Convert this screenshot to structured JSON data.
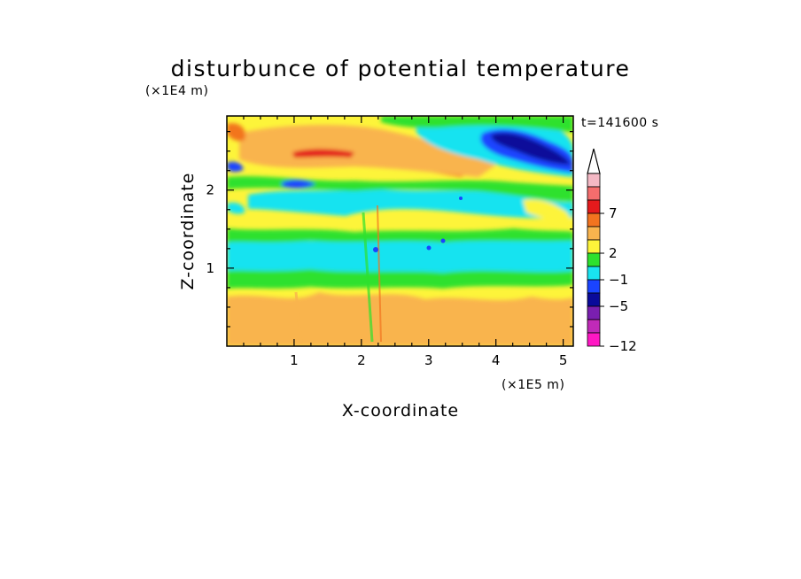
{
  "chart_data": {
    "type": "heatmap",
    "title": "disturbunce of potential temperature",
    "xlabel": "X-coordinate",
    "ylabel": "Z-coordinate",
    "x_unit": "(×1E5 m)",
    "y_unit": "(×1E4 m)",
    "time_label": "t=141600 s",
    "xlim": [
      0,
      5.15
    ],
    "ylim": [
      0,
      2.95
    ],
    "x_ticks": [
      "1",
      "2",
      "3",
      "4",
      "5"
    ],
    "y_ticks": [
      "1",
      "2"
    ],
    "colorbar": {
      "levels_shown": [
        "7",
        "2",
        "−1",
        "−5",
        "−12"
      ],
      "colors": [
        "#f4b8c4",
        "#f46d6d",
        "#e41a1c",
        "#f2741f",
        "#f9b44e",
        "#fdf43a",
        "#2de12d",
        "#19e3f0",
        "#1a44ff",
        "#0a0a9a",
        "#7a1fb0",
        "#c02ab8",
        "#ff17c4"
      ],
      "extend_top_arrow": true
    },
    "field_description_bands": [
      {
        "z_from": 0.0,
        "z_to": 0.35,
        "value_class": "yellow-orange"
      },
      {
        "z_from": 0.35,
        "z_to": 0.75,
        "value_class": "yellow"
      },
      {
        "z_from": 0.75,
        "z_to": 0.95,
        "value_class": "green"
      },
      {
        "z_from": 0.95,
        "z_to": 1.35,
        "value_class": "cyan"
      },
      {
        "z_from": 1.35,
        "z_to": 1.55,
        "value_class": "green"
      },
      {
        "z_from": 1.55,
        "z_to": 1.85,
        "value_class": "yellow"
      },
      {
        "z_from": 1.85,
        "z_to": 2.15,
        "value_class": "cyan"
      },
      {
        "z_from": 2.15,
        "z_to": 2.6,
        "value_class": "orange"
      },
      {
        "z_from": 2.6,
        "z_to": 2.95,
        "value_class": "yellow-green"
      }
    ]
  }
}
